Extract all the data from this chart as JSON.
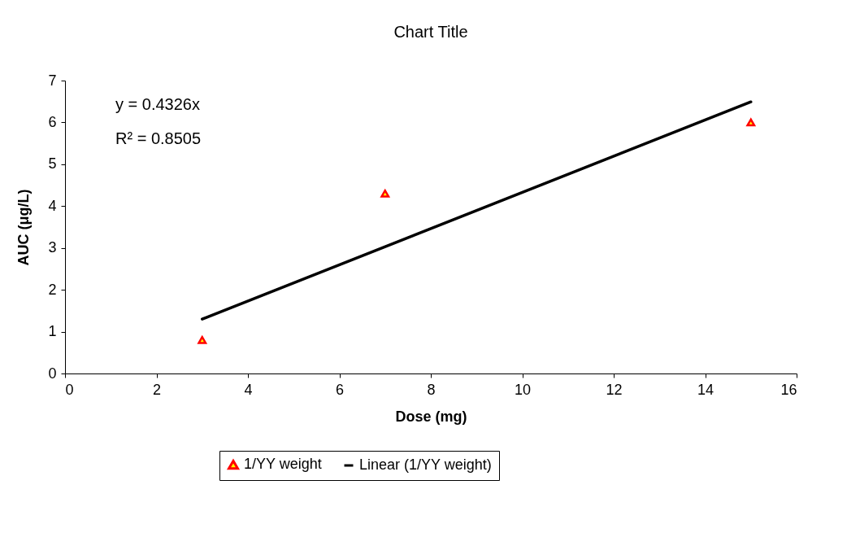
{
  "chart_data": {
    "type": "scatter",
    "title": "Chart Title",
    "xlabel": "Dose (mg)",
    "ylabel": "AUC (μg/L)",
    "xlim": [
      0,
      16
    ],
    "xticks": [
      0,
      2,
      4,
      6,
      8,
      10,
      12,
      14,
      16
    ],
    "ylim": [
      0,
      7
    ],
    "yticks": [
      0,
      1,
      2,
      3,
      4,
      5,
      6,
      7
    ],
    "series": [
      {
        "name": "1/YY weight",
        "color": "#ff0000",
        "marker": "triangle",
        "x": [
          3,
          7,
          15
        ],
        "values": [
          0.8,
          4.3,
          6.0
        ]
      },
      {
        "name": "Linear (1/YY weight)",
        "type": "line",
        "color": "#000000",
        "x": [
          3,
          15
        ],
        "values": [
          1.3,
          6.49
        ]
      }
    ],
    "annotations": [
      {
        "text": "y = 0.4326x"
      },
      {
        "text": "R² = 0.8505"
      }
    ],
    "grid": false,
    "legend": "bottom"
  }
}
